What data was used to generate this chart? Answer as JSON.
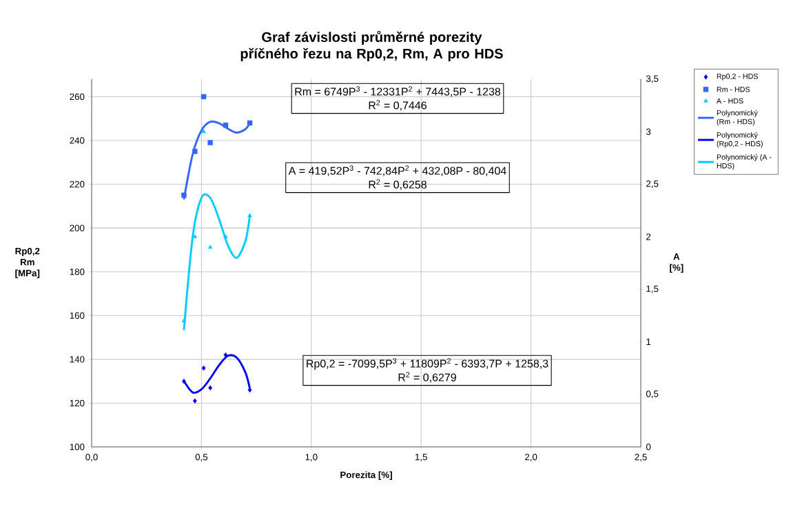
{
  "chart_data": {
    "type": "scatter",
    "title": "Graf závislosti průměrné porezity příčného řezu na Rp0,2, Rm, A pro HDS",
    "xlabel": "Porezita [%]",
    "ylabel": "Rp0,2 Rm [MPa]",
    "y2label": "A [%]",
    "xlim": [
      0,
      2.5
    ],
    "xticks": [
      {
        "value": 0,
        "label": "0,0"
      },
      {
        "value": 0.5,
        "label": "0,5"
      },
      {
        "value": 1,
        "label": "1,0"
      },
      {
        "value": 1.5,
        "label": "1,5"
      },
      {
        "value": 2,
        "label": "2,0"
      },
      {
        "value": 2.5,
        "label": "2,5"
      }
    ],
    "ylim": [
      100,
      268
    ],
    "yticks": [
      100,
      120,
      140,
      160,
      180,
      200,
      220,
      240,
      260
    ],
    "y2lim": [
      0,
      3.5
    ],
    "y2ticks": [
      {
        "value": 0,
        "label": "0"
      },
      {
        "value": 0.5,
        "label": "0,5"
      },
      {
        "value": 1,
        "label": "1"
      },
      {
        "value": 1.5,
        "label": "1,5"
      },
      {
        "value": 2,
        "label": "2"
      },
      {
        "value": 2.5,
        "label": "2,5"
      },
      {
        "value": 3,
        "label": "3"
      },
      {
        "value": 3.5,
        "label": "3,5"
      }
    ],
    "grid": true,
    "legend": "right",
    "annotations": [
      "Rm = 6749P$^{3}$ - 12331P$^{2}$ + 7443,5P - 1238",
      "R$^{2}$ = 0,7446",
      "A = 419,52P$^{3}$ - 742,84P$^{2}$ + 432,08P - 80,404",
      "R$^{2}$ = 0,6258",
      "Rp0,2 = -7099,5P$^{3}$ + 11809P$^{2}$ - 6393,7P + 1258,3",
      "R$^{2}$ = 0,6279"
    ],
    "series": [
      {
        "name": "Rp0,2 - HDS",
        "marker": "diamond",
        "color": "#0000ff",
        "x": [
          0.42,
          0.47,
          0.51,
          0.54,
          0.61,
          0.72
        ],
        "values": [
          130,
          121,
          136,
          127,
          142,
          126
        ]
      },
      {
        "name": "Rm - HDS",
        "marker": "square",
        "color": "#3366ff",
        "x": [
          0.42,
          0.47,
          0.51,
          0.54,
          0.61,
          0.72
        ],
        "values": [
          215,
          235,
          260,
          239,
          247,
          248
        ]
      },
      {
        "name": "A - HDS",
        "marker": "triangle",
        "color": "#00ccff",
        "axis": "y2",
        "x": [
          0.42,
          0.47,
          0.51,
          0.54,
          0.61,
          0.72
        ],
        "values": [
          1.2,
          2.0,
          3.0,
          1.9,
          2.0,
          2.2
        ]
      },
      {
        "name": "Polynomický (Rm - HDS)",
        "type": "line",
        "marker": "none",
        "color": "#3366ff",
        "x": [
          0.42,
          0.46,
          0.5,
          0.54,
          0.58,
          0.62,
          0.66,
          0.7,
          0.72
        ],
        "values": [
          213.1,
          233.7,
          244.6,
          248.5,
          247.9,
          245.4,
          243.6,
          245.2,
          248.0
        ]
      },
      {
        "name": "Polynomický (Rp0,2 - HDS)",
        "type": "line",
        "marker": "none",
        "color": "#0000ff",
        "x": [
          0.42,
          0.46,
          0.5,
          0.54,
          0.58,
          0.62,
          0.66,
          0.7,
          0.72
        ],
        "values": [
          130.1,
          124.9,
          126.3,
          131.3,
          137.3,
          141.6,
          140.8,
          134.0,
          126.7
        ]
      },
      {
        "name": "Polynomický (A - HDS)",
        "type": "line",
        "marker": "none",
        "color": "#00ccff",
        "axis": "y2",
        "x": [
          0.42,
          0.46,
          0.5,
          0.54,
          0.58,
          0.62,
          0.66,
          0.7,
          0.72
        ],
        "values": [
          1.11,
          2.0,
          2.37,
          2.37,
          2.17,
          1.92,
          1.8,
          1.96,
          2.2
        ]
      }
    ]
  }
}
